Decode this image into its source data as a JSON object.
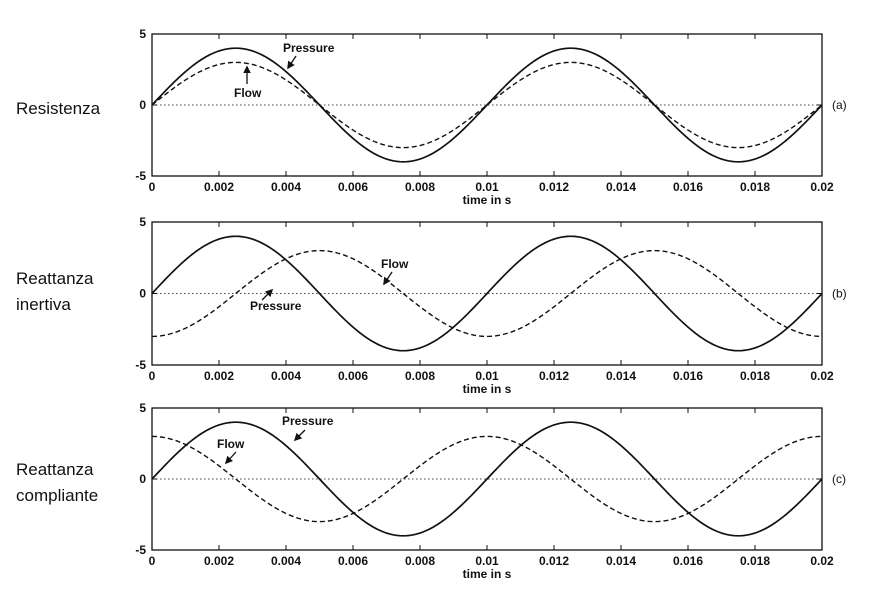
{
  "side_labels": [
    {
      "line1": "Resistenza",
      "line2": ""
    },
    {
      "line1": "Reattanza",
      "line2": "inertiva"
    },
    {
      "line1": "Reattanza",
      "line2": "compliante"
    }
  ],
  "chart_data": [
    {
      "type": "line",
      "panel_label": "(a)",
      "xlabel": "time in s",
      "ylabel": "",
      "xlim": [
        0,
        0.02
      ],
      "ylim": [
        -5,
        5
      ],
      "xticks": [
        "0",
        "0.002",
        "0.004",
        "0.006",
        "0.008",
        "0.01",
        "0.012",
        "0.014",
        "0.016",
        "0.018",
        "0.02"
      ],
      "yticks": [
        "5",
        "0",
        "-5"
      ],
      "zero_line": "dotted",
      "series": [
        {
          "name": "Pressure",
          "style": "solid",
          "amplitude": 4,
          "frequency_hz": 100,
          "phase_deg": 0
        },
        {
          "name": "Flow",
          "style": "dashed",
          "amplitude": 3,
          "frequency_hz": 100,
          "phase_deg": 0
        }
      ],
      "annotations": [
        {
          "text": "Pressure",
          "x": 0.0027,
          "y": 4.1
        },
        {
          "text": "Flow",
          "x": 0.0024,
          "y": 2.9
        }
      ]
    },
    {
      "type": "line",
      "panel_label": "(b)",
      "xlabel": "time in s",
      "ylabel": "",
      "xlim": [
        0,
        0.02
      ],
      "ylim": [
        -5,
        5
      ],
      "xticks": [
        "0",
        "0.002",
        "0.004",
        "0.006",
        "0.008",
        "0.01",
        "0.012",
        "0.014",
        "0.016",
        "0.018",
        "0.02"
      ],
      "yticks": [
        "5",
        "0",
        "-5"
      ],
      "zero_line": "dotted",
      "series": [
        {
          "name": "Pressure",
          "style": "solid",
          "amplitude": 4,
          "frequency_hz": 100,
          "phase_deg": 0
        },
        {
          "name": "Flow",
          "style": "dashed",
          "amplitude": 3,
          "frequency_hz": 100,
          "phase_deg": -90
        }
      ],
      "annotations": [
        {
          "text": "Flow",
          "x": 0.0075,
          "y": 0.0
        },
        {
          "text": "Pressure",
          "x": 0.0047,
          "y": 0.0
        }
      ]
    },
    {
      "type": "line",
      "panel_label": "(c)",
      "xlabel": "time in s",
      "ylabel": "",
      "xlim": [
        0,
        0.02
      ],
      "ylim": [
        -5,
        5
      ],
      "xticks": [
        "0",
        "0.002",
        "0.004",
        "0.006",
        "0.008",
        "0.01",
        "0.012",
        "0.014",
        "0.016",
        "0.018",
        "0.02"
      ],
      "yticks": [
        "5",
        "0",
        "-5"
      ],
      "zero_line": "dotted",
      "series": [
        {
          "name": "Pressure",
          "style": "solid",
          "amplitude": 4,
          "frequency_hz": 100,
          "phase_deg": 0
        },
        {
          "name": "Flow",
          "style": "dashed",
          "amplitude": 3,
          "frequency_hz": 100,
          "phase_deg": 90
        }
      ],
      "annotations": [
        {
          "text": "Pressure",
          "x": 0.0035,
          "y": 3.2
        },
        {
          "text": "Flow",
          "x": 0.0018,
          "y": 0.8
        }
      ]
    }
  ]
}
